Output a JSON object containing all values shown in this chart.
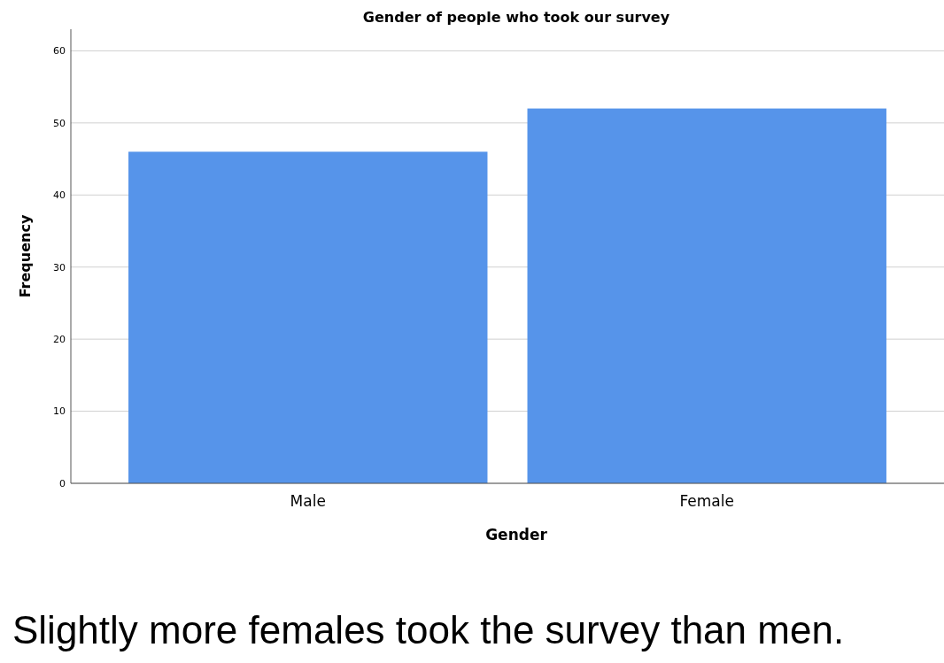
{
  "chart_data": {
    "type": "bar",
    "title": "Gender of people who took our survey",
    "xlabel": "Gender",
    "ylabel": "Frequency",
    "categories": [
      "Male",
      "Female"
    ],
    "values": [
      46,
      52
    ],
    "color": "#5694ea",
    "ylim": [
      0,
      63
    ],
    "yticks": [
      0,
      10,
      20,
      30,
      40,
      50,
      60
    ],
    "grid": "y",
    "annotations": [
      "Slightly more females took the survey than men."
    ]
  }
}
